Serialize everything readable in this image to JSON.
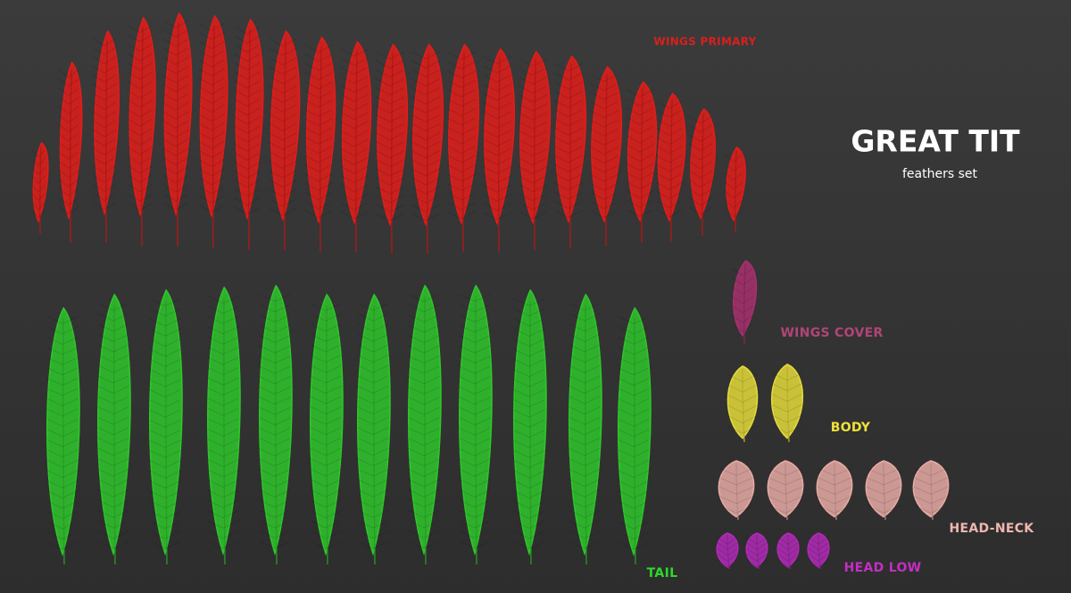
{
  "header": {
    "title": "GREAT TIT",
    "subtitle": "feathers set"
  },
  "groups": {
    "wings_primary": "WINGS PRIMARY",
    "wings_cover": "WINGS COVER",
    "body": "BODY",
    "tail": "TAIL",
    "head_neck": "HEAD-NECK",
    "head_low": "HEAD LOW"
  }
}
